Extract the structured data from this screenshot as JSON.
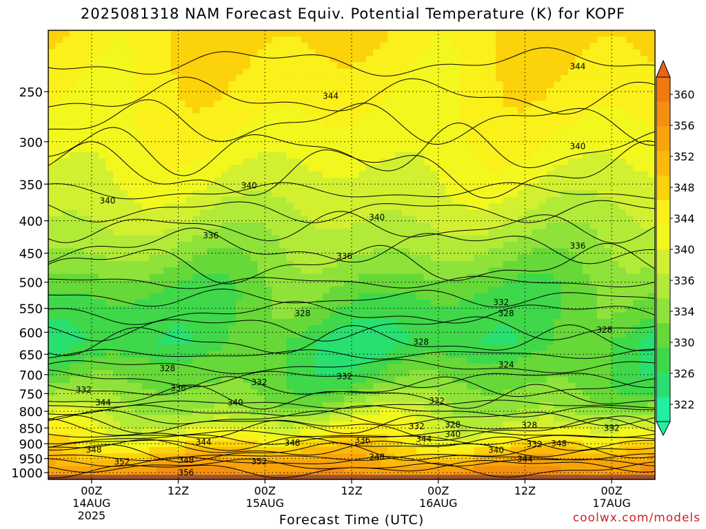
{
  "chart_data": {
    "type": "heatmap",
    "title": "2025081318 NAM Forecast Equiv. Potential Temperature (K) for KOPF",
    "xlabel": "Forecast Time (UTC)",
    "ylabel": "",
    "credit": "coolwx.com/models",
    "y_scale": "log-pressure",
    "y_ticks": [
      250,
      300,
      350,
      400,
      450,
      500,
      550,
      600,
      650,
      700,
      750,
      800,
      850,
      900,
      950,
      1000
    ],
    "ylim": [
      1025,
      200
    ],
    "x_ticks": [
      {
        "hour": 6,
        "lines": [
          "00Z",
          "14AUG",
          "2025"
        ]
      },
      {
        "hour": 18,
        "lines": [
          "12Z"
        ]
      },
      {
        "hour": 30,
        "lines": [
          "00Z",
          "15AUG"
        ]
      },
      {
        "hour": 42,
        "lines": [
          "12Z"
        ]
      },
      {
        "hour": 54,
        "lines": [
          "00Z",
          "16AUG"
        ]
      },
      {
        "hour": 66,
        "lines": [
          "12Z"
        ]
      },
      {
        "hour": 78,
        "lines": [
          "00Z",
          "17AUG"
        ]
      }
    ],
    "xlim": [
      0,
      84
    ],
    "grid": true,
    "colorbar": {
      "labels": [
        360,
        356,
        352,
        348,
        344,
        340,
        336,
        334,
        330,
        326,
        322
      ],
      "colors": [
        "#f07a10",
        "#f58f10",
        "#f9a40a",
        "#fbb90a",
        "#fcd20a",
        "#fbf01a",
        "#f2f81e",
        "#d2f030",
        "#b2ea38",
        "#8ee23a",
        "#66d838",
        "#3ed84a",
        "#28e070",
        "#20f0a0"
      ]
    },
    "contour_labels": [
      {
        "value": "344",
        "hour": 73.3,
        "p": 228
      },
      {
        "value": "344",
        "hour": 39.1,
        "p": 254
      },
      {
        "value": "340",
        "hour": 73.3,
        "p": 305
      },
      {
        "value": "340",
        "hour": 27.8,
        "p": 352
      },
      {
        "value": "340",
        "hour": 8.2,
        "p": 372
      },
      {
        "value": "340",
        "hour": 45.5,
        "p": 395
      },
      {
        "value": "336",
        "hour": 22.5,
        "p": 422
      },
      {
        "value": "336",
        "hour": 41.0,
        "p": 455
      },
      {
        "value": "336",
        "hour": 73.3,
        "p": 438
      },
      {
        "value": "332",
        "hour": 62.7,
        "p": 538
      },
      {
        "value": "328",
        "hour": 35.2,
        "p": 560
      },
      {
        "value": "328",
        "hour": 63.4,
        "p": 560
      },
      {
        "value": "328",
        "hour": 77.0,
        "p": 595
      },
      {
        "value": "328",
        "hour": 51.6,
        "p": 622
      },
      {
        "value": "328",
        "hour": 16.5,
        "p": 685
      },
      {
        "value": "324",
        "hour": 63.4,
        "p": 675
      },
      {
        "value": "332",
        "hour": 4.9,
        "p": 740
      },
      {
        "value": "336",
        "hour": 18.0,
        "p": 735
      },
      {
        "value": "332",
        "hour": 29.2,
        "p": 720
      },
      {
        "value": "332",
        "hour": 41.0,
        "p": 705
      },
      {
        "value": "344",
        "hour": 7.6,
        "p": 775
      },
      {
        "value": "340",
        "hour": 25.9,
        "p": 775
      },
      {
        "value": "332",
        "hour": 53.8,
        "p": 770
      },
      {
        "value": "332",
        "hour": 51.0,
        "p": 845
      },
      {
        "value": "328",
        "hour": 56.0,
        "p": 840
      },
      {
        "value": "340",
        "hour": 56.0,
        "p": 870
      },
      {
        "value": "328",
        "hour": 66.6,
        "p": 842
      },
      {
        "value": "332",
        "hour": 78.0,
        "p": 850
      },
      {
        "value": "344",
        "hour": 21.5,
        "p": 895
      },
      {
        "value": "348",
        "hour": 33.8,
        "p": 898
      },
      {
        "value": "336",
        "hour": 43.5,
        "p": 888
      },
      {
        "value": "344",
        "hour": 52.0,
        "p": 885
      },
      {
        "value": "332",
        "hour": 67.3,
        "p": 902
      },
      {
        "value": "348",
        "hour": 70.7,
        "p": 900
      },
      {
        "value": "348",
        "hour": 6.3,
        "p": 920
      },
      {
        "value": "340",
        "hour": 62.0,
        "p": 922
      },
      {
        "value": "352",
        "hour": 29.2,
        "p": 960
      },
      {
        "value": "348",
        "hour": 45.5,
        "p": 945
      },
      {
        "value": "344",
        "hour": 66.0,
        "p": 952
      },
      {
        "value": "352",
        "hour": 10.2,
        "p": 962
      },
      {
        "value": "348",
        "hour": 19.1,
        "p": 955
      },
      {
        "value": "356",
        "hour": 19.1,
        "p": 1000
      }
    ],
    "bands": [
      {
        "p_top": 200,
        "base": 347,
        "amp": 3.0
      },
      {
        "p_top": 280,
        "base": 344,
        "amp": 2.5
      },
      {
        "p_top": 360,
        "base": 340,
        "amp": 2.5
      },
      {
        "p_top": 430,
        "base": 336,
        "amp": 3.0
      },
      {
        "p_top": 520,
        "base": 330,
        "amp": 3.5
      },
      {
        "p_top": 620,
        "base": 327,
        "amp": 4.0
      },
      {
        "p_top": 720,
        "base": 331,
        "amp": 4.0
      },
      {
        "p_top": 800,
        "base": 336,
        "amp": 5.0
      },
      {
        "p_top": 860,
        "base": 342,
        "amp": 5.0
      },
      {
        "p_top": 930,
        "base": 350,
        "amp": 4.0
      },
      {
        "p_top": 1000,
        "base": 356,
        "amp": 2.0
      }
    ]
  }
}
